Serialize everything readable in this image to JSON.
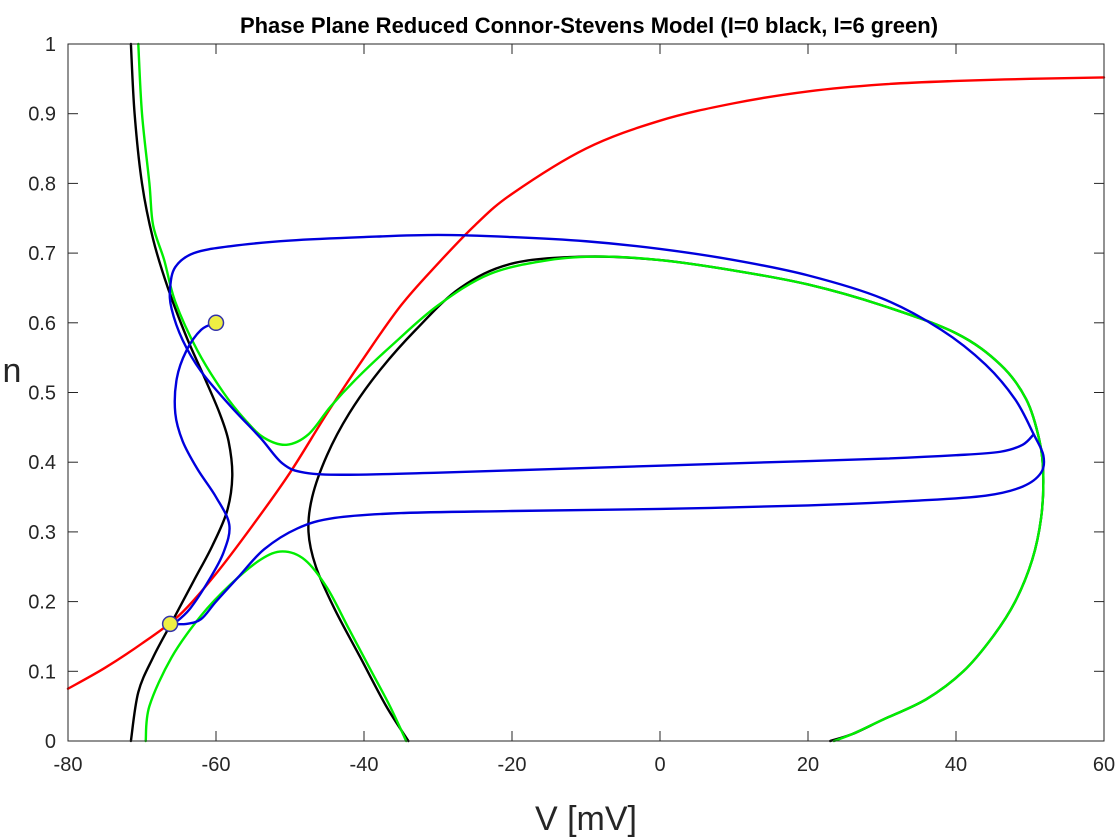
{
  "chart_data": {
    "type": "line",
    "title": "Phase Plane Reduced Connor-Stevens Model (I=0 black, I=6 green)",
    "xlabel": "V [mV]",
    "ylabel": "n",
    "xlim": [
      -80,
      60
    ],
    "ylim": [
      0,
      1
    ],
    "xticks": [
      -80,
      -60,
      -40,
      -20,
      0,
      20,
      40,
      60
    ],
    "yticks": [
      0,
      0.1,
      0.2,
      0.3,
      0.4,
      0.5,
      0.6,
      0.7,
      0.8,
      0.9,
      1
    ],
    "grid": false,
    "series": [
      {
        "color": "#ff0000",
        "segments": [
          [
            [
              -80,
              0.075
            ],
            [
              -75,
              0.105
            ],
            [
              -70,
              0.14
            ],
            [
              -65,
              0.18
            ],
            [
              -60,
              0.24
            ],
            [
              -55,
              0.31
            ],
            [
              -50,
              0.385
            ],
            [
              -45,
              0.47
            ],
            [
              -40,
              0.55
            ],
            [
              -35,
              0.625
            ],
            [
              -30,
              0.685
            ],
            [
              -25,
              0.74
            ],
            [
              -20,
              0.785
            ],
            [
              -10,
              0.85
            ],
            [
              0,
              0.89
            ],
            [
              10,
              0.915
            ],
            [
              20,
              0.932
            ],
            [
              30,
              0.942
            ],
            [
              40,
              0.947
            ],
            [
              50,
              0.95
            ],
            [
              60,
              0.952
            ]
          ]
        ]
      },
      {
        "color": "#000000",
        "segments": [
          [
            [
              -71.5,
              1.0
            ],
            [
              -71.0,
              0.9
            ],
            [
              -70.0,
              0.8
            ],
            [
              -68.5,
              0.72
            ],
            [
              -66.5,
              0.65
            ],
            [
              -64.0,
              0.58
            ],
            [
              -61.5,
              0.52
            ],
            [
              -59.5,
              0.47
            ],
            [
              -58.3,
              0.43
            ],
            [
              -57.8,
              0.38
            ],
            [
              -58.5,
              0.33
            ],
            [
              -60.5,
              0.28
            ],
            [
              -63.0,
              0.23
            ],
            [
              -66.0,
              0.17
            ],
            [
              -68.5,
              0.12
            ],
            [
              -70.5,
              0.07
            ],
            [
              -71.5,
              0.0
            ]
          ],
          [
            [
              -34.0,
              0.0
            ],
            [
              -37.0,
              0.05
            ],
            [
              -40.5,
              0.12
            ],
            [
              -44.0,
              0.19
            ],
            [
              -46.5,
              0.25
            ],
            [
              -47.5,
              0.3
            ],
            [
              -47.0,
              0.35
            ],
            [
              -45.0,
              0.41
            ],
            [
              -42.0,
              0.47
            ],
            [
              -38.0,
              0.53
            ],
            [
              -33.0,
              0.59
            ],
            [
              -27.0,
              0.65
            ],
            [
              -20.0,
              0.685
            ],
            [
              -10.0,
              0.695
            ],
            [
              0.0,
              0.69
            ],
            [
              10.0,
              0.675
            ],
            [
              20.0,
              0.655
            ],
            [
              30.0,
              0.625
            ],
            [
              40.0,
              0.585
            ],
            [
              46.0,
              0.54
            ],
            [
              49.5,
              0.49
            ],
            [
              51.3,
              0.43
            ],
            [
              51.8,
              0.38
            ],
            [
              51.5,
              0.32
            ],
            [
              50.3,
              0.26
            ],
            [
              48.0,
              0.2
            ],
            [
              45.0,
              0.15
            ],
            [
              41.0,
              0.1
            ],
            [
              36.0,
              0.06
            ],
            [
              30.0,
              0.03
            ],
            [
              26.0,
              0.01
            ],
            [
              23.0,
              0.0
            ]
          ]
        ]
      },
      {
        "color": "#00ee00",
        "segments": [
          [
            [
              -70.5,
              1.0
            ],
            [
              -70.0,
              0.9
            ],
            [
              -69.0,
              0.8
            ],
            [
              -68.5,
              0.74
            ],
            [
              -67.0,
              0.69
            ],
            [
              -65.5,
              0.63
            ],
            [
              -62.5,
              0.56
            ],
            [
              -59.0,
              0.5
            ],
            [
              -56.0,
              0.46
            ],
            [
              -53.5,
              0.435
            ],
            [
              -50.5,
              0.425
            ],
            [
              -47.5,
              0.44
            ],
            [
              -44.5,
              0.48
            ],
            [
              -41.0,
              0.52
            ],
            [
              -36.0,
              0.57
            ],
            [
              -30.0,
              0.625
            ],
            [
              -23.0,
              0.67
            ],
            [
              -15.0,
              0.69
            ],
            [
              -8.0,
              0.695
            ],
            [
              0.0,
              0.69
            ],
            [
              10.0,
              0.675
            ],
            [
              20.0,
              0.655
            ],
            [
              30.0,
              0.625
            ],
            [
              40.0,
              0.585
            ],
            [
              46.0,
              0.54
            ],
            [
              49.5,
              0.49
            ],
            [
              51.3,
              0.43
            ],
            [
              51.8,
              0.38
            ],
            [
              51.5,
              0.32
            ],
            [
              50.3,
              0.26
            ],
            [
              48.0,
              0.2
            ],
            [
              45.0,
              0.15
            ],
            [
              41.0,
              0.1
            ],
            [
              36.0,
              0.06
            ],
            [
              30.0,
              0.03
            ],
            [
              26.0,
              0.01
            ],
            [
              23.5,
              0.0
            ]
          ],
          [
            [
              -69.5,
              0.0
            ],
            [
              -69.0,
              0.05
            ],
            [
              -66.0,
              0.12
            ],
            [
              -62.0,
              0.18
            ],
            [
              -58.0,
              0.225
            ],
            [
              -54.0,
              0.26
            ],
            [
              -51.0,
              0.272
            ],
            [
              -48.0,
              0.26
            ],
            [
              -45.0,
              0.22
            ],
            [
              -42.0,
              0.16
            ],
            [
              -39.0,
              0.1
            ],
            [
              -36.5,
              0.05
            ],
            [
              -34.3,
              0.0
            ]
          ]
        ]
      },
      {
        "color": "#0000dd",
        "segments": [
          [
            [
              -60.0,
              0.6
            ],
            [
              -62.0,
              0.59
            ],
            [
              -64.0,
              0.56
            ],
            [
              -65.3,
              0.52
            ],
            [
              -65.5,
              0.47
            ],
            [
              -64.5,
              0.43
            ],
            [
              -62.5,
              0.39
            ],
            [
              -60.0,
              0.35
            ],
            [
              -58.2,
              0.31
            ],
            [
              -59.0,
              0.27
            ],
            [
              -61.0,
              0.23
            ],
            [
              -63.5,
              0.19
            ],
            [
              -65.5,
              0.17
            ],
            [
              -66.2,
              0.168
            ]
          ],
          [
            [
              -66.2,
              0.168
            ],
            [
              -64.0,
              0.168
            ],
            [
              -62.0,
              0.175
            ],
            [
              -60.0,
              0.2
            ],
            [
              -57.0,
              0.235
            ],
            [
              -53.5,
              0.275
            ],
            [
              -49.0,
              0.305
            ],
            [
              -44.0,
              0.32
            ],
            [
              -35.0,
              0.327
            ],
            [
              -20.0,
              0.33
            ],
            [
              0.0,
              0.333
            ],
            [
              20.0,
              0.338
            ],
            [
              35.0,
              0.345
            ],
            [
              44.0,
              0.352
            ],
            [
              49.0,
              0.365
            ],
            [
              51.5,
              0.385
            ],
            [
              51.8,
              0.41
            ],
            [
              50.5,
              0.44
            ],
            [
              48.0,
              0.49
            ],
            [
              44.0,
              0.54
            ],
            [
              38.0,
              0.59
            ],
            [
              30.0,
              0.635
            ],
            [
              20.0,
              0.668
            ],
            [
              10.0,
              0.69
            ],
            [
              0.0,
              0.706
            ],
            [
              -10.0,
              0.717
            ],
            [
              -20.0,
              0.723
            ],
            [
              -30.0,
              0.726
            ],
            [
              -40.0,
              0.723
            ],
            [
              -50.0,
              0.718
            ],
            [
              -58.0,
              0.71
            ],
            [
              -63.0,
              0.7
            ],
            [
              -65.5,
              0.68
            ],
            [
              -66.2,
              0.65
            ],
            [
              -66.0,
              0.62
            ],
            [
              -64.5,
              0.575
            ],
            [
              -62.0,
              0.53
            ],
            [
              -58.0,
              0.48
            ],
            [
              -54.0,
              0.435
            ],
            [
              -51.0,
              0.398
            ],
            [
              -48.0,
              0.385
            ],
            [
              -42.0,
              0.382
            ],
            [
              -30.0,
              0.385
            ],
            [
              -15.0,
              0.39
            ],
            [
              0.0,
              0.395
            ],
            [
              15.0,
              0.4
            ],
            [
              30.0,
              0.405
            ],
            [
              40.0,
              0.41
            ],
            [
              46.0,
              0.415
            ],
            [
              49.0,
              0.425
            ],
            [
              50.5,
              0.44
            ]
          ]
        ]
      }
    ],
    "markers": [
      {
        "x": -60.0,
        "y": 0.6,
        "color": "#eeee44"
      },
      {
        "x": -66.2,
        "y": 0.168,
        "color": "#eeee44"
      }
    ]
  }
}
